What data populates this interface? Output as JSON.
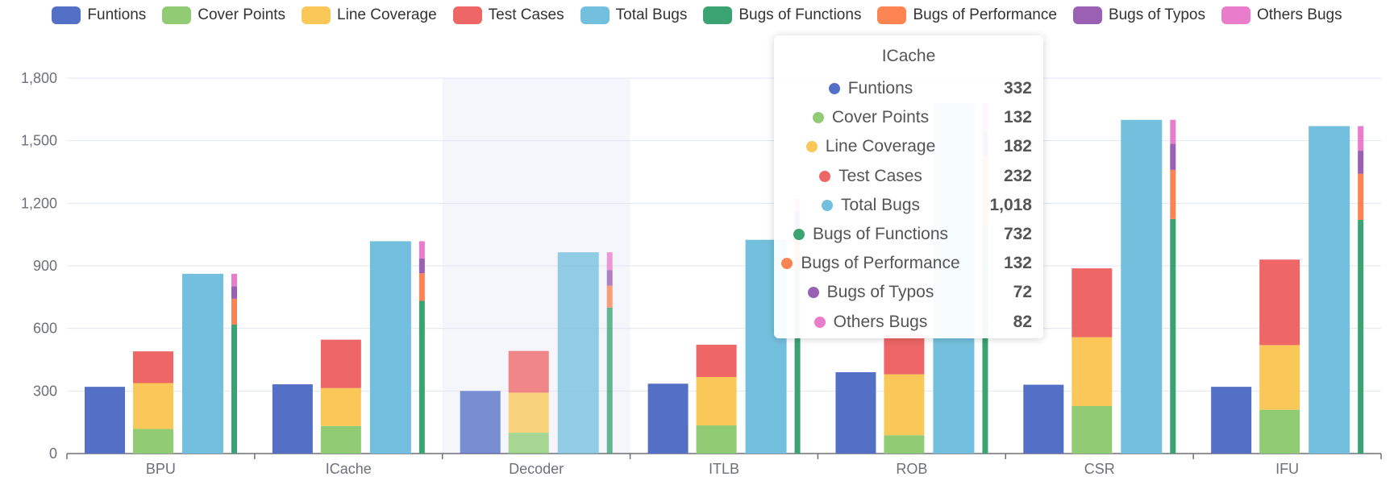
{
  "chart_data": {
    "type": "bar",
    "categories": [
      "BPU",
      "ICache",
      "Decoder",
      "ITLB",
      "ROB",
      "CSR",
      "IFU"
    ],
    "ylim": [
      0,
      1800
    ],
    "yticks": [
      0,
      300,
      600,
      900,
      1200,
      1500,
      1800
    ],
    "ytick_labels": [
      "0",
      "300",
      "600",
      "900",
      "1,200",
      "1,500",
      "1,800"
    ],
    "legend_position": "top",
    "grid": true,
    "series": [
      {
        "name": "Funtions",
        "color": "#5470c6",
        "stack": "a",
        "values": [
          320,
          332,
          300,
          335,
          390,
          330,
          320
        ]
      },
      {
        "name": "Cover Points",
        "color": "#91cc75",
        "stack": "b",
        "values": [
          118,
          132,
          100,
          135,
          88,
          228,
          210
        ]
      },
      {
        "name": "Line Coverage",
        "color": "#fac858",
        "stack": "b",
        "values": [
          220,
          182,
          192,
          232,
          292,
          330,
          310
        ]
      },
      {
        "name": "Test Cases",
        "color": "#ee6666",
        "stack": "b",
        "values": [
          152,
          232,
          200,
          155,
          190,
          330,
          410
        ]
      },
      {
        "name": "Total Bugs",
        "color": "#73c0de",
        "stack": "c",
        "values": [
          862,
          1018,
          965,
          1025,
          1680,
          1600,
          1570
        ]
      },
      {
        "name": "Bugs of Functions",
        "color": "#3ba272",
        "stack": "d",
        "values": [
          618,
          732,
          700,
          880,
          1095,
          1125,
          1120
        ]
      },
      {
        "name": "Bugs of Performance",
        "color": "#fc8452",
        "stack": "d",
        "values": [
          124,
          132,
          105,
          200,
          330,
          235,
          222
        ]
      },
      {
        "name": "Bugs of Typos",
        "color": "#9a60b4",
        "stack": "d",
        "values": [
          60,
          72,
          75,
          80,
          120,
          125,
          110
        ]
      },
      {
        "name": "Others Bugs",
        "color": "#ea7ccc",
        "stack": "d",
        "values": [
          60,
          82,
          85,
          60,
          135,
          115,
          118
        ]
      }
    ],
    "highlighted_category": "Decoder"
  },
  "tooltip": {
    "title": "ICache",
    "rows": [
      {
        "label": "Funtions",
        "value": "332",
        "color": "#5470c6"
      },
      {
        "label": "Cover Points",
        "value": "132",
        "color": "#91cc75"
      },
      {
        "label": "Line Coverage",
        "value": "182",
        "color": "#fac858"
      },
      {
        "label": "Test Cases",
        "value": "232",
        "color": "#ee6666"
      },
      {
        "label": "Total Bugs",
        "value": "1,018",
        "color": "#73c0de"
      },
      {
        "label": "Bugs of Functions",
        "value": "732",
        "color": "#3ba272"
      },
      {
        "label": "Bugs of Performance",
        "value": "132",
        "color": "#fc8452"
      },
      {
        "label": "Bugs of Typos",
        "value": "72",
        "color": "#9a60b4"
      },
      {
        "label": "Others Bugs",
        "value": "82",
        "color": "#ea7ccc"
      }
    ]
  }
}
